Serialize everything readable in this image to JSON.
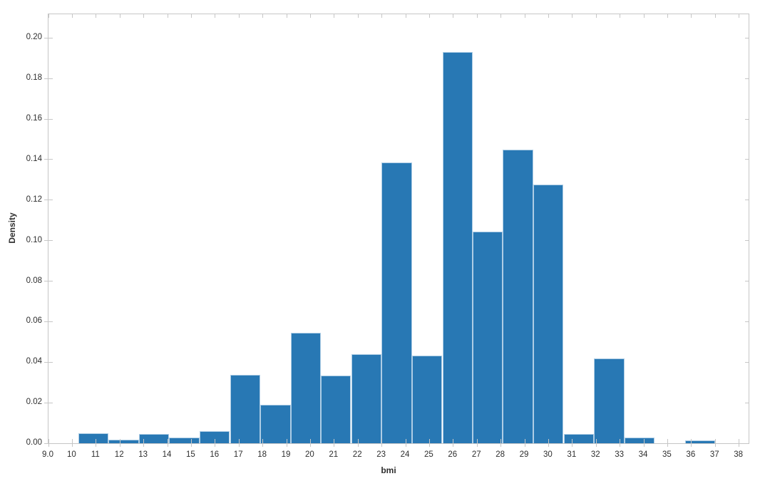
{
  "chart_data": {
    "type": "bar",
    "subtype": "histogram",
    "title": "",
    "xlabel": "bmi",
    "ylabel": "Density",
    "xlim": [
      9.0,
      38.4
    ],
    "ylim": [
      0,
      0.2117
    ],
    "grid": false,
    "legend": false,
    "bin_edges": [
      10.25,
      11.52,
      12.8,
      14.07,
      15.35,
      16.62,
      17.89,
      19.17,
      20.44,
      21.71,
      22.99,
      24.26,
      25.54,
      26.81,
      28.08,
      29.36,
      30.63,
      31.9,
      33.18,
      34.45,
      35.73,
      37.0
    ],
    "densities": [
      0.005,
      0.0017,
      0.0045,
      0.003,
      0.006,
      0.0337,
      0.019,
      0.0545,
      0.0333,
      0.0439,
      0.1387,
      0.0433,
      0.193,
      0.1045,
      0.1448,
      0.1276,
      0.0045,
      0.042,
      0.0028,
      0.0,
      0.0015
    ],
    "x_ticks": [
      {
        "value": 9,
        "label": "9.0"
      },
      {
        "value": 10,
        "label": "10"
      },
      {
        "value": 11,
        "label": "11"
      },
      {
        "value": 12,
        "label": "12"
      },
      {
        "value": 13,
        "label": "13"
      },
      {
        "value": 14,
        "label": "14"
      },
      {
        "value": 15,
        "label": "15"
      },
      {
        "value": 16,
        "label": "16"
      },
      {
        "value": 17,
        "label": "17"
      },
      {
        "value": 18,
        "label": "18"
      },
      {
        "value": 19,
        "label": "19"
      },
      {
        "value": 20,
        "label": "20"
      },
      {
        "value": 21,
        "label": "21"
      },
      {
        "value": 22,
        "label": "22"
      },
      {
        "value": 23,
        "label": "23"
      },
      {
        "value": 24,
        "label": "24"
      },
      {
        "value": 25,
        "label": "25"
      },
      {
        "value": 26,
        "label": "26"
      },
      {
        "value": 27,
        "label": "27"
      },
      {
        "value": 28,
        "label": "28"
      },
      {
        "value": 29,
        "label": "29"
      },
      {
        "value": 30,
        "label": "30"
      },
      {
        "value": 31,
        "label": "31"
      },
      {
        "value": 32,
        "label": "32"
      },
      {
        "value": 33,
        "label": "33"
      },
      {
        "value": 34,
        "label": "34"
      },
      {
        "value": 35,
        "label": "35"
      },
      {
        "value": 36,
        "label": "36"
      },
      {
        "value": 37,
        "label": "37"
      },
      {
        "value": 38,
        "label": "38"
      }
    ],
    "y_ticks": [
      {
        "value": 0.0,
        "label": "0.00"
      },
      {
        "value": 0.02,
        "label": "0.02"
      },
      {
        "value": 0.04,
        "label": "0.04"
      },
      {
        "value": 0.06,
        "label": "0.06"
      },
      {
        "value": 0.08,
        "label": "0.08"
      },
      {
        "value": 0.1,
        "label": "0.10"
      },
      {
        "value": 0.12,
        "label": "0.12"
      },
      {
        "value": 0.14,
        "label": "0.14"
      },
      {
        "value": 0.16,
        "label": "0.16"
      },
      {
        "value": 0.18,
        "label": "0.18"
      },
      {
        "value": 0.2,
        "label": "0.20"
      }
    ],
    "colors": {
      "bar_fill": "#2878b4",
      "bar_edge": "#aecde5",
      "axis_line": "#c6c6c6",
      "tick_label": "#2e2e2e",
      "background": "#ffffff"
    }
  }
}
